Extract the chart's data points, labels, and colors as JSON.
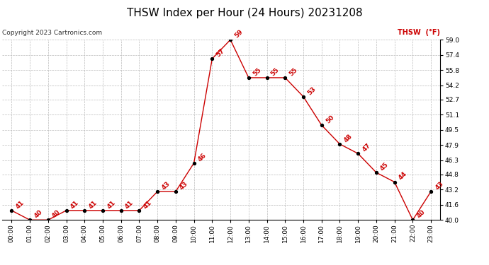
{
  "title": "THSW Index per Hour (24 Hours) 20231208",
  "copyright": "Copyright 2023 Cartronics.com",
  "legend_label": "THSW  (°F)",
  "hours": [
    "00:00",
    "01:00",
    "02:00",
    "03:00",
    "04:00",
    "05:00",
    "06:00",
    "07:00",
    "08:00",
    "09:00",
    "10:00",
    "11:00",
    "12:00",
    "13:00",
    "14:00",
    "15:00",
    "16:00",
    "17:00",
    "18:00",
    "19:00",
    "20:00",
    "21:00",
    "22:00",
    "23:00"
  ],
  "values": [
    41,
    40,
    40,
    41,
    41,
    41,
    41,
    41,
    43,
    43,
    46,
    57,
    59,
    55,
    55,
    55,
    53,
    50,
    48,
    47,
    45,
    44,
    40,
    43
  ],
  "line_color": "#cc0000",
  "marker_color": "#000000",
  "label_color": "#cc0000",
  "bg_color": "#ffffff",
  "grid_color": "#bbbbbb",
  "ylim_min": 40.0,
  "ylim_max": 59.0,
  "yticks": [
    40.0,
    41.6,
    43.2,
    44.8,
    46.3,
    47.9,
    49.5,
    51.1,
    52.7,
    54.2,
    55.8,
    57.4,
    59.0
  ],
  "title_fontsize": 11,
  "label_fontsize": 6.5,
  "tick_fontsize": 6.5,
  "copyright_fontsize": 6.5,
  "legend_fontsize": 7
}
